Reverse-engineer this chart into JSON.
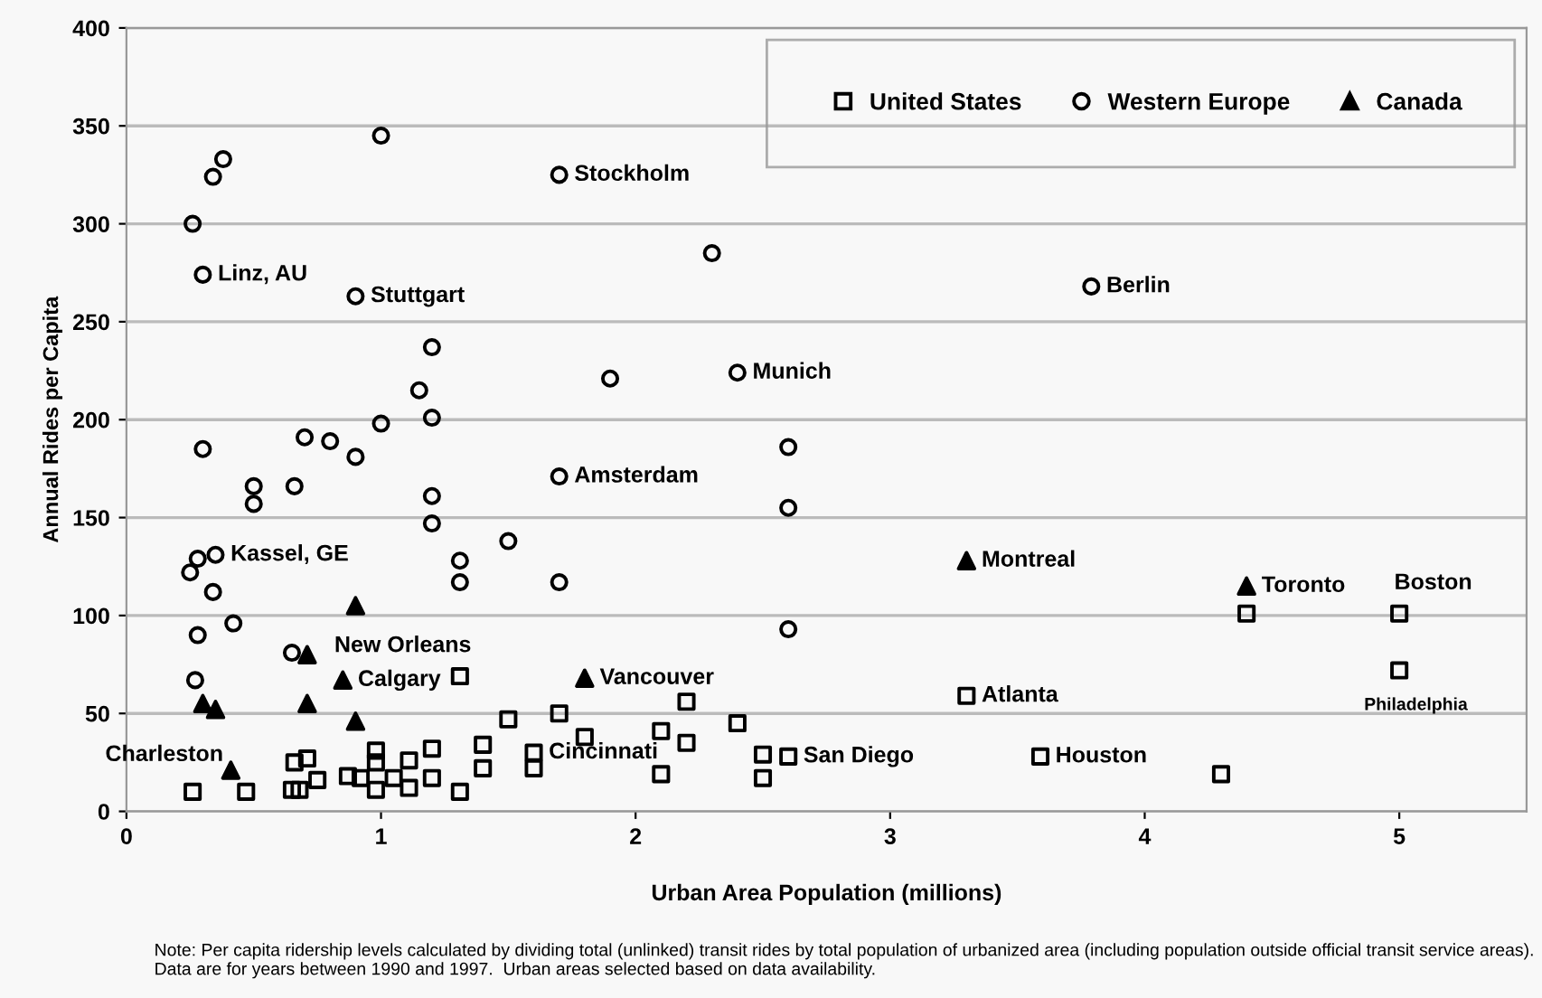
{
  "chart_data": {
    "type": "scatter",
    "xlabel": "Urban Area Population (millions)",
    "ylabel": "Annual Rides per Capita",
    "xlim": [
      0,
      5.5
    ],
    "xticks": [
      0,
      1,
      2,
      3,
      4,
      5
    ],
    "ylim": [
      0,
      400
    ],
    "yticks": [
      0,
      50,
      100,
      150,
      200,
      250,
      300,
      350,
      400
    ],
    "grid": "y",
    "legend": "top right",
    "series": [
      {
        "name": "United States",
        "color": "#000000",
        "marker": "square",
        "x": [
          1.31,
          1.5,
          1.7,
          2.2,
          2.4,
          1.8,
          2.1,
          2.2,
          2.1,
          2.5,
          2.5,
          1.6,
          1.6,
          1.4,
          1.4,
          1.2,
          1.2,
          1.31,
          1.11,
          1.11,
          0.98,
          0.98,
          0.98,
          1.05,
          0.92,
          0.87,
          0.75,
          0.71,
          0.66,
          0.65,
          0.68,
          0.47,
          0.26,
          2.6,
          3.3,
          3.59,
          4.3,
          4.4,
          5.0,
          5.0
        ],
        "values": [
          69,
          47,
          50,
          56,
          45,
          38,
          41,
          35,
          19,
          29,
          17,
          30,
          22,
          34,
          22,
          32,
          17,
          10,
          26,
          12,
          31,
          25,
          11,
          17,
          17,
          18,
          16,
          27,
          25,
          11,
          11,
          10,
          10,
          28,
          59,
          28,
          19,
          101,
          101,
          72
        ]
      },
      {
        "name": "Western Europe",
        "color": "#000000",
        "marker": "circle",
        "x": [
          1.0,
          0.38,
          0.34,
          0.26,
          0.3,
          0.9,
          1.7,
          2.3,
          1.2,
          1.9,
          2.4,
          1.15,
          1.2,
          1.0,
          0.3,
          0.7,
          0.8,
          0.9,
          2.6,
          1.7,
          0.5,
          0.5,
          0.66,
          1.2,
          2.6,
          1.2,
          1.5,
          0.35,
          0.28,
          0.25,
          0.34,
          1.31,
          1.31,
          1.7,
          0.42,
          0.28,
          0.65,
          0.27,
          2.6,
          3.79
        ],
        "values": [
          345,
          333,
          324,
          300,
          274,
          263,
          325,
          285,
          237,
          221,
          224,
          215,
          201,
          198,
          185,
          191,
          189,
          181,
          186,
          171,
          166,
          157,
          166,
          161,
          155,
          147,
          138,
          131,
          129,
          122,
          112,
          128,
          117,
          117,
          96,
          90,
          81,
          67,
          93,
          268
        ]
      },
      {
        "name": "Canada",
        "color": "#000000",
        "marker": "triangle",
        "x": [
          0.9,
          0.71,
          0.85,
          1.8,
          0.3,
          0.35,
          0.9,
          0.41,
          3.3,
          4.4,
          0.71
        ],
        "values": [
          105,
          80,
          67,
          68,
          55,
          52,
          46,
          21,
          128,
          115,
          55
        ]
      }
    ],
    "annotations": [
      {
        "text": "Stockholm",
        "x": 1.7,
        "y": 325
      },
      {
        "text": "Linz, AU",
        "x": 0.3,
        "y": 274
      },
      {
        "text": "Stuttgart",
        "x": 0.9,
        "y": 263
      },
      {
        "text": "Munich",
        "x": 2.4,
        "y": 224
      },
      {
        "text": "Berlin",
        "x": 3.79,
        "y": 268
      },
      {
        "text": "Amsterdam",
        "x": 1.7,
        "y": 171
      },
      {
        "text": "Kassel, GE",
        "x": 0.35,
        "y": 131
      },
      {
        "text": "Montreal",
        "x": 3.3,
        "y": 128
      },
      {
        "text": "Toronto",
        "x": 4.4,
        "y": 115
      },
      {
        "text": "Boston",
        "x": 5.0,
        "y": 101
      },
      {
        "text": "New Orleans",
        "x": 1.31,
        "y": 69
      },
      {
        "text": "Calgary",
        "x": 0.85,
        "y": 67
      },
      {
        "text": "Vancouver",
        "x": 1.8,
        "y": 68
      },
      {
        "text": "Atlanta",
        "x": 3.3,
        "y": 59
      },
      {
        "text": "Philadelphia",
        "x": 5.0,
        "y": 72
      },
      {
        "text": "Charleston",
        "x": 0.41,
        "y": 21
      },
      {
        "text": "Cincinnati",
        "x": 1.6,
        "y": 30
      },
      {
        "text": "San Diego",
        "x": 2.6,
        "y": 28
      },
      {
        "text": "Houston",
        "x": 3.59,
        "y": 28
      },
      "Note: Per capita ridership levels calculated by dividing total (unlinked) transit rides by total population of urbanized area (including population outside official transit service areas).  Data are for years between 1990 and 1997.  Urban areas selected based on data availability."
    ]
  }
}
